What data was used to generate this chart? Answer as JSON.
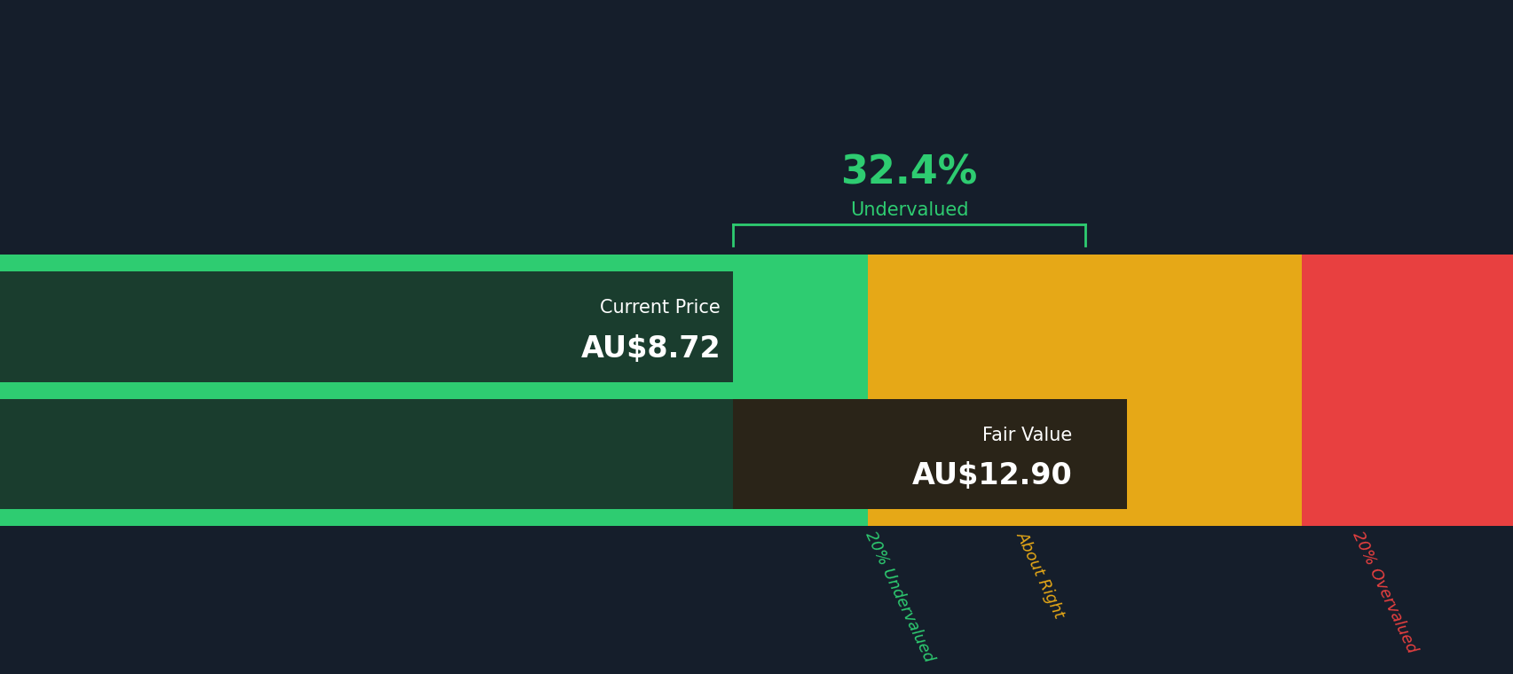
{
  "background_color": "#151e2b",
  "green_bright": "#2ecc71",
  "green_dark": "#1a3d2e",
  "fair_value_dark": "#2a2418",
  "gold": "#e6a817",
  "red": "#e84040",
  "bracket_color": "#2ecc71",
  "annotation_pct": "32.4%",
  "annotation_label": "Undervalued",
  "annotation_color": "#2ecc71",
  "current_price_label": "Current Price",
  "current_price_value": "AU$8.72",
  "fair_value_label": "Fair Value",
  "fair_value_value": "AU$12.90",
  "label_undervalued": "20% Undervalued",
  "label_about_right": "About Right",
  "label_overvalued": "20% Overvalued",
  "label_undervalued_color": "#2ecc71",
  "label_about_right_color": "#e6a817",
  "label_overvalued_color": "#e84040",
  "current_price": 8.72,
  "fair_value": 12.9,
  "x_max": 18.0
}
